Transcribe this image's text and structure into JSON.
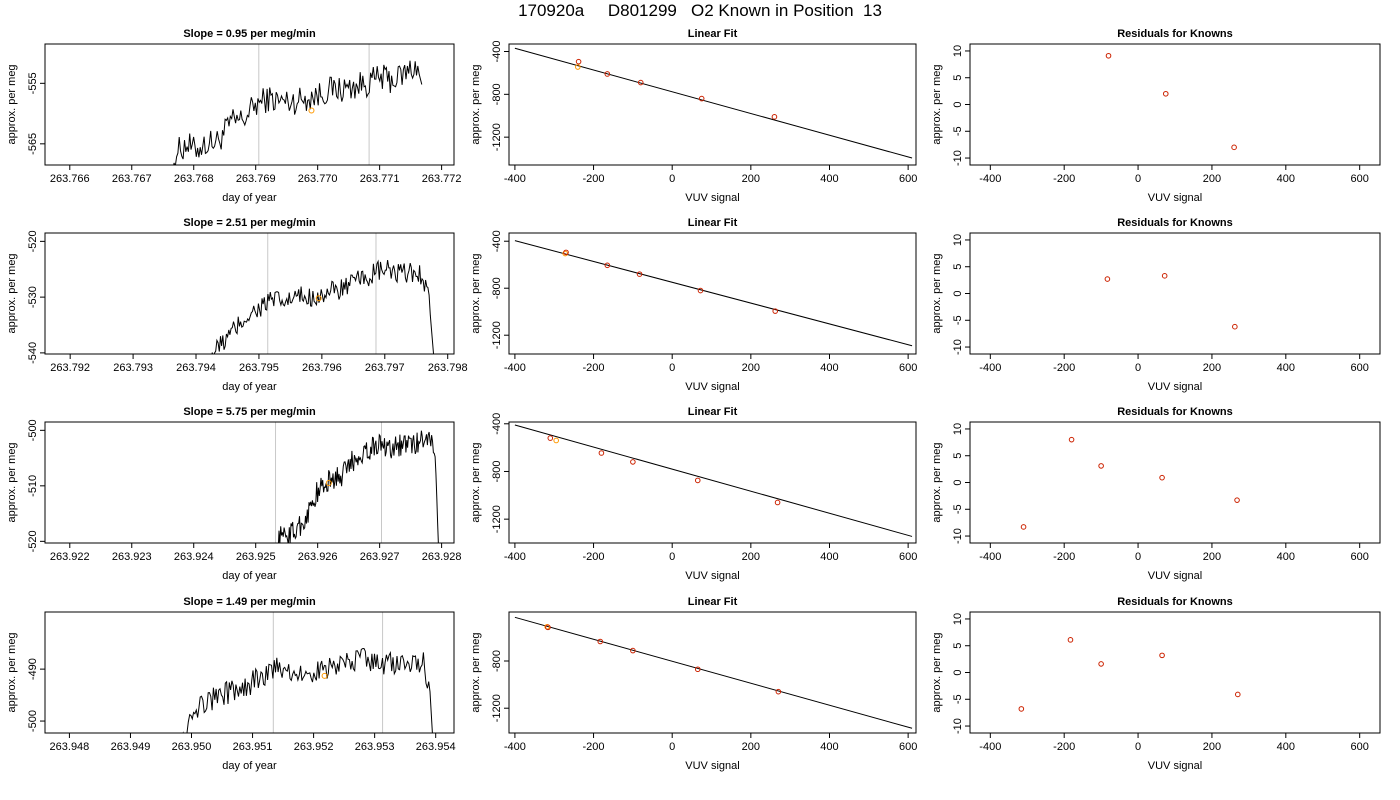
{
  "title": "170920a     D801299   O2 Known in Position  13",
  "colors": {
    "line": "#000000",
    "point_red": "#cc2200",
    "point_orange": "#ff9900",
    "guide": "#c8c8c8",
    "text": "#000000"
  },
  "chart_data": [
    {
      "type": "line",
      "panel": "trace",
      "row": 1,
      "title": "Slope =  0.95  per meg/min",
      "xlabel": "day of year",
      "ylabel": "approx. per meg",
      "xlim": [
        263.7656,
        263.7722
      ],
      "ylim": [
        -568.5,
        -548.5
      ],
      "xticks": [
        263.766,
        263.767,
        263.768,
        263.769,
        263.77,
        263.771,
        263.772
      ],
      "xtick_labels": [
        "263.766",
        "263.767",
        "263.768",
        "263.769",
        "263.770",
        "263.771",
        "263.772"
      ],
      "yticks": [
        -555,
        -565
      ],
      "ytick_labels": [
        "-555",
        "-565"
      ],
      "guides": [
        263.76905,
        263.77083
      ],
      "trace": {
        "start": 263.76766,
        "end": 263.77168,
        "drop_start": 263.76766,
        "drop_end": 263.77163,
        "anchors": [
          [
            263.76766,
            -570
          ],
          [
            263.7677,
            -566.5
          ],
          [
            263.7679,
            -565
          ],
          [
            263.768,
            -566
          ],
          [
            263.7682,
            -565
          ],
          [
            263.7684,
            -564.5
          ],
          [
            263.7686,
            -561.5
          ],
          [
            263.7688,
            -561
          ],
          [
            263.769,
            -558.5
          ],
          [
            263.7692,
            -557.5
          ],
          [
            263.7694,
            -558
          ],
          [
            263.7696,
            -558
          ],
          [
            263.7698,
            -557.5
          ],
          [
            263.77,
            -557
          ],
          [
            263.7702,
            -556
          ],
          [
            263.7704,
            -556
          ],
          [
            263.7706,
            -555.5
          ],
          [
            263.7708,
            -555
          ],
          [
            263.771,
            -554
          ],
          [
            263.7712,
            -554.5
          ],
          [
            263.7714,
            -553.5
          ],
          [
            263.7716,
            -552
          ],
          [
            263.7717,
            -556
          ],
          [
            263.77168,
            -570
          ]
        ],
        "noise": 1.4
      },
      "marker": [
        263.7699,
        -559.5
      ]
    },
    {
      "type": "scatter",
      "panel": "fit",
      "row": 1,
      "title": "Linear Fit",
      "xlabel": "VUV signal",
      "ylabel": "approx. per meg",
      "xlim": [
        -415,
        620
      ],
      "ylim": [
        -1460,
        -330
      ],
      "xticks": [
        -400,
        -200,
        0,
        200,
        400,
        600
      ],
      "xtick_labels": [
        "-400",
        "-200",
        "0",
        "200",
        "400",
        "600"
      ],
      "yticks": [
        -400,
        -800,
        -1200
      ],
      "ytick_labels": [
        "-400",
        "-800",
        "-1200"
      ],
      "fit_line": [
        [
          -400,
          -370
        ],
        [
          610,
          -1395
        ]
      ],
      "points": [
        {
          "x": -240,
          "y": -545,
          "color": "orange"
        },
        {
          "x": -238,
          "y": -495,
          "color": "red"
        },
        {
          "x": -165,
          "y": -610,
          "color": "red"
        },
        {
          "x": -80,
          "y": -690,
          "color": "red"
        },
        {
          "x": 75,
          "y": -840,
          "color": "red"
        },
        {
          "x": 260,
          "y": -1010,
          "color": "red"
        }
      ]
    },
    {
      "type": "scatter",
      "panel": "residuals",
      "row": 1,
      "title": "Residuals for Knowns",
      "xlabel": "VUV signal",
      "ylabel": "approx. per meg",
      "xlim": [
        -455,
        655
      ],
      "ylim": [
        -11.3,
        11.3
      ],
      "xticks": [
        -400,
        -200,
        0,
        200,
        400,
        600
      ],
      "xtick_labels": [
        "-400",
        "-200",
        "0",
        "200",
        "400",
        "600"
      ],
      "yticks": [
        10,
        5,
        0,
        -5,
        -10
      ],
      "ytick_labels": [
        "10",
        "5",
        "0",
        "-5",
        "-10"
      ],
      "points": [
        {
          "x": -80,
          "y": 9.1
        },
        {
          "x": 75,
          "y": 2.0
        },
        {
          "x": 260,
          "y": -8.0
        }
      ]
    },
    {
      "type": "line",
      "panel": "trace",
      "row": 2,
      "title": "Slope =  2.51  per meg/min",
      "xlabel": "day of year",
      "ylabel": "approx. per meg",
      "xlim": [
        263.7916,
        263.7981
      ],
      "ylim": [
        -540.2,
        -518.5
      ],
      "xticks": [
        263.792,
        263.793,
        263.794,
        263.795,
        263.796,
        263.797,
        263.798
      ],
      "xtick_labels": [
        "263.792",
        "263.793",
        "263.794",
        "263.795",
        "263.796",
        "263.797",
        "263.798"
      ],
      "yticks": [
        -520,
        -530,
        -540
      ],
      "ytick_labels": [
        "-520",
        "-530",
        "-540"
      ],
      "guides": [
        263.79514,
        263.79686
      ],
      "trace": {
        "start": 263.7942,
        "end": 263.79778,
        "drop_start": 263.7942,
        "drop_end": 263.79771,
        "anchors": [
          [
            263.7942,
            -541
          ],
          [
            263.7944,
            -538.5
          ],
          [
            263.7946,
            -536
          ],
          [
            263.7948,
            -533.5
          ],
          [
            263.795,
            -532
          ],
          [
            263.7952,
            -530.5
          ],
          [
            263.7954,
            -531
          ],
          [
            263.7956,
            -530
          ],
          [
            263.7958,
            -530
          ],
          [
            263.796,
            -529.5
          ],
          [
            263.7962,
            -529
          ],
          [
            263.7964,
            -528
          ],
          [
            263.7966,
            -527
          ],
          [
            263.7968,
            -526
          ],
          [
            263.797,
            -525
          ],
          [
            263.7972,
            -526
          ],
          [
            263.7974,
            -525.5
          ],
          [
            263.7976,
            -526
          ],
          [
            263.7977,
            -530
          ],
          [
            263.79778,
            -541
          ]
        ],
        "noise": 1.2
      },
      "marker": [
        263.79595,
        -530.2
      ]
    },
    {
      "type": "scatter",
      "panel": "fit",
      "row": 2,
      "title": "Linear Fit",
      "xlabel": "VUV signal",
      "ylabel": "approx. per meg",
      "xlim": [
        -415,
        620
      ],
      "ylim": [
        -1360,
        -330
      ],
      "xticks": [
        -400,
        -200,
        0,
        200,
        400,
        600
      ],
      "xtick_labels": [
        "-400",
        "-200",
        "0",
        "200",
        "400",
        "600"
      ],
      "yticks": [
        -400,
        -800,
        -1200
      ],
      "ytick_labels": [
        "-400",
        "-800",
        "-1200"
      ],
      "fit_line": [
        [
          -400,
          -395
        ],
        [
          610,
          -1290
        ]
      ],
      "points": [
        {
          "x": -272,
          "y": -505,
          "color": "orange"
        },
        {
          "x": -270,
          "y": -495,
          "color": "red"
        },
        {
          "x": -165,
          "y": -605,
          "color": "red"
        },
        {
          "x": -83,
          "y": -680,
          "color": "red"
        },
        {
          "x": 72,
          "y": -820,
          "color": "red"
        },
        {
          "x": 262,
          "y": -995,
          "color": "red"
        }
      ]
    },
    {
      "type": "scatter",
      "panel": "residuals",
      "row": 2,
      "title": "Residuals for Knowns",
      "xlabel": "VUV signal",
      "ylabel": "approx. per meg",
      "xlim": [
        -455,
        655
      ],
      "ylim": [
        -11.3,
        11.3
      ],
      "xticks": [
        -400,
        -200,
        0,
        200,
        400,
        600
      ],
      "xtick_labels": [
        "-400",
        "-200",
        "0",
        "200",
        "400",
        "600"
      ],
      "yticks": [
        10,
        5,
        0,
        -5,
        -10
      ],
      "ytick_labels": [
        "10",
        "5",
        "0",
        "-5",
        "-10"
      ],
      "points": [
        {
          "x": -83,
          "y": 2.7
        },
        {
          "x": 72,
          "y": 3.3
        },
        {
          "x": 262,
          "y": -6.2
        }
      ]
    },
    {
      "type": "line",
      "panel": "trace",
      "row": 3,
      "title": "Slope =  5.75  per meg/min",
      "xlabel": "day of year",
      "ylabel": "approx. per meg",
      "xlim": [
        263.9216,
        263.9282
      ],
      "ylim": [
        -520.3,
        -498.5
      ],
      "xticks": [
        263.922,
        263.923,
        263.924,
        263.925,
        263.926,
        263.927,
        263.928
      ],
      "xtick_labels": [
        "263.922",
        "263.923",
        "263.924",
        "263.925",
        "263.926",
        "263.927",
        "263.928"
      ],
      "yticks": [
        -500,
        -510,
        -520
      ],
      "ytick_labels": [
        "-500",
        "-510",
        "-520"
      ],
      "guides": [
        263.92532,
        263.92703
      ],
      "trace": {
        "start": 263.92532,
        "end": 263.92795,
        "drop_start": 263.92532,
        "drop_end": 263.92788,
        "anchors": [
          [
            263.92532,
            -521
          ],
          [
            263.9254,
            -519
          ],
          [
            263.9256,
            -518.5
          ],
          [
            263.9258,
            -516
          ],
          [
            263.926,
            -511
          ],
          [
            263.9262,
            -509
          ],
          [
            263.9264,
            -508
          ],
          [
            263.9266,
            -505
          ],
          [
            263.9268,
            -503.5
          ],
          [
            263.927,
            -502.5
          ],
          [
            263.9272,
            -503
          ],
          [
            263.9274,
            -502.5
          ],
          [
            263.9276,
            -502.5
          ],
          [
            263.9278,
            -500.5
          ],
          [
            263.9279,
            -505
          ],
          [
            263.92795,
            -521
          ]
        ],
        "noise": 1.3
      },
      "marker": [
        263.92618,
        -509.5
      ]
    },
    {
      "type": "scatter",
      "panel": "fit",
      "row": 3,
      "title": "Linear Fit",
      "xlabel": "VUV signal",
      "ylabel": "approx. per meg",
      "xlim": [
        -415,
        620
      ],
      "ylim": [
        -1400,
        -385
      ],
      "xticks": [
        -400,
        -200,
        0,
        200,
        400,
        600
      ],
      "xtick_labels": [
        "-400",
        "-200",
        "0",
        "200",
        "400",
        "600"
      ],
      "yticks": [
        -400,
        -800,
        -1200
      ],
      "ytick_labels": [
        "-400",
        "-800",
        "-1200"
      ],
      "fit_line": [
        [
          -400,
          -410
        ],
        [
          610,
          -1345
        ]
      ],
      "points": [
        {
          "x": -310,
          "y": -520,
          "color": "red"
        },
        {
          "x": -295,
          "y": -540,
          "color": "orange"
        },
        {
          "x": -180,
          "y": -645,
          "color": "red"
        },
        {
          "x": -100,
          "y": -720,
          "color": "red"
        },
        {
          "x": 65,
          "y": -875,
          "color": "red"
        },
        {
          "x": 268,
          "y": -1060,
          "color": "red"
        }
      ]
    },
    {
      "type": "scatter",
      "panel": "residuals",
      "row": 3,
      "title": "Residuals for Knowns",
      "xlabel": "VUV signal",
      "ylabel": "approx. per meg",
      "xlim": [
        -455,
        655
      ],
      "ylim": [
        -11.3,
        11.3
      ],
      "xticks": [
        -400,
        -200,
        0,
        200,
        400,
        600
      ],
      "xtick_labels": [
        "-400",
        "-200",
        "0",
        "200",
        "400",
        "600"
      ],
      "yticks": [
        10,
        5,
        0,
        -5,
        -10
      ],
      "ytick_labels": [
        "10",
        "5",
        "0",
        "-5",
        "-10"
      ],
      "points": [
        {
          "x": -310,
          "y": -8.3
        },
        {
          "x": -180,
          "y": 8.0
        },
        {
          "x": -100,
          "y": 3.1
        },
        {
          "x": 65,
          "y": 0.9
        },
        {
          "x": 268,
          "y": -3.3
        }
      ]
    },
    {
      "type": "line",
      "panel": "trace",
      "row": 4,
      "title": "Slope =  1.49  per meg/min",
      "xlabel": "day of year",
      "ylabel": "approx. per meg",
      "xlim": [
        263.9476,
        263.9543
      ],
      "ylim": [
        -502.3,
        -479
      ],
      "xticks": [
        263.948,
        263.949,
        263.95,
        263.951,
        263.952,
        263.953,
        263.954
      ],
      "xtick_labels": [
        "263.948",
        "263.949",
        "263.950",
        "263.951",
        "263.952",
        "263.953",
        "263.954"
      ],
      "yticks": [
        -490,
        -500
      ],
      "ytick_labels": [
        "-490",
        "-500"
      ],
      "guides": [
        263.95134,
        263.95313
      ],
      "trace": {
        "start": 263.94984,
        "end": 263.95395,
        "drop_start": 263.94984,
        "drop_end": 263.95388,
        "anchors": [
          [
            263.94984,
            -503
          ],
          [
            263.95,
            -498
          ],
          [
            263.9502,
            -496.5
          ],
          [
            263.9504,
            -495.5
          ],
          [
            263.9506,
            -494.5
          ],
          [
            263.9508,
            -494
          ],
          [
            263.951,
            -492.5
          ],
          [
            263.9512,
            -491
          ],
          [
            263.9514,
            -490
          ],
          [
            263.9516,
            -490.5
          ],
          [
            263.9518,
            -491
          ],
          [
            263.952,
            -490.5
          ],
          [
            263.9522,
            -490
          ],
          [
            263.9524,
            -489.5
          ],
          [
            263.9526,
            -488.5
          ],
          [
            263.9528,
            -488
          ],
          [
            263.953,
            -488.5
          ],
          [
            263.9532,
            -489
          ],
          [
            263.9534,
            -489
          ],
          [
            263.9536,
            -488.5
          ],
          [
            263.9538,
            -489
          ],
          [
            263.9539,
            -493
          ],
          [
            263.95395,
            -503
          ]
        ],
        "noise": 1.4
      },
      "marker": [
        263.95218,
        -491.3
      ]
    },
    {
      "type": "scatter",
      "panel": "fit",
      "row": 4,
      "title": "Linear Fit",
      "xlabel": "VUV signal",
      "ylabel": "approx. per meg",
      "xlim": [
        -415,
        620
      ],
      "ylim": [
        -1410,
        -385
      ],
      "xticks": [
        -400,
        -200,
        0,
        200,
        400,
        600
      ],
      "xtick_labels": [
        "-400",
        "-200",
        "0",
        "200",
        "400",
        "600"
      ],
      "yticks": [
        -800,
        -1200
      ],
      "ytick_labels": [
        "-800",
        "-1200"
      ],
      "fit_line": [
        [
          -400,
          -430
        ],
        [
          610,
          -1370
        ]
      ],
      "points": [
        {
          "x": -318,
          "y": -510,
          "color": "orange"
        },
        {
          "x": -316,
          "y": -515,
          "color": "red"
        },
        {
          "x": -183,
          "y": -635,
          "color": "red"
        },
        {
          "x": -100,
          "y": -712,
          "color": "red"
        },
        {
          "x": 65,
          "y": -870,
          "color": "red"
        },
        {
          "x": 270,
          "y": -1060,
          "color": "red"
        }
      ]
    },
    {
      "type": "scatter",
      "panel": "residuals",
      "row": 4,
      "title": "Residuals for Knowns",
      "xlabel": "VUV signal",
      "ylabel": "approx. per meg",
      "xlim": [
        -455,
        655
      ],
      "ylim": [
        -11.3,
        11.3
      ],
      "xticks": [
        -400,
        -200,
        0,
        200,
        400,
        600
      ],
      "xtick_labels": [
        "-400",
        "-200",
        "0",
        "200",
        "400",
        "600"
      ],
      "yticks": [
        10,
        5,
        0,
        -5,
        -10
      ],
      "ytick_labels": [
        "10",
        "5",
        "0",
        "-5",
        "-10"
      ],
      "points": [
        {
          "x": -316,
          "y": -6.8
        },
        {
          "x": -183,
          "y": 6.1
        },
        {
          "x": -100,
          "y": 1.6
        },
        {
          "x": 65,
          "y": 3.2
        },
        {
          "x": 270,
          "y": -4.1
        }
      ]
    }
  ]
}
